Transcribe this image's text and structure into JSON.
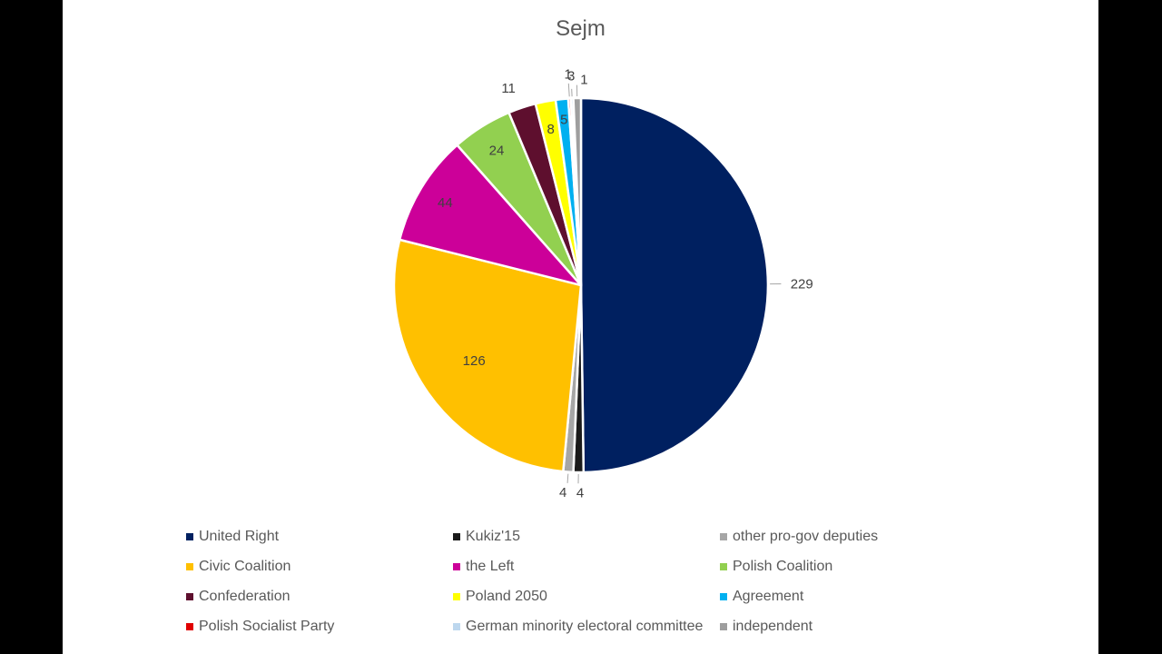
{
  "chart_data": {
    "type": "pie",
    "title": "Sejm",
    "slices": [
      {
        "name": "United Right",
        "value": 229,
        "color": "#002060",
        "label": "229"
      },
      {
        "name": "Kukiz'15",
        "value": 4,
        "color": "#1a1a1a",
        "label": "4"
      },
      {
        "name": "other pro-gov deputies",
        "value": 4,
        "color": "#a6a6a6",
        "label": "4"
      },
      {
        "name": "Civic Coalition",
        "value": 126,
        "color": "#ffc000",
        "label": "126"
      },
      {
        "name": "the Left",
        "value": 44,
        "color": "#cc0099",
        "label": "44"
      },
      {
        "name": "Polish Coalition",
        "value": 24,
        "color": "#92d050",
        "label": "24"
      },
      {
        "name": "Confederation",
        "value": 11,
        "color": "#5e0f2e",
        "label": "11"
      },
      {
        "name": "Poland 2050",
        "value": 8,
        "color": "#ffff00",
        "label": "8"
      },
      {
        "name": "Agreement",
        "value": 5,
        "color": "#00b0f0",
        "label": "5"
      },
      {
        "name": "Polish Socialist Party",
        "value": 1,
        "color": "#e00000",
        "label": "1"
      },
      {
        "name": "German minority electoral committee",
        "value": 1,
        "color": "#bdd7ee",
        "label": "1"
      },
      {
        "name": "independent",
        "value": 3,
        "color": "#9e9e9e",
        "label": "3"
      }
    ],
    "legend_position": "bottom"
  }
}
